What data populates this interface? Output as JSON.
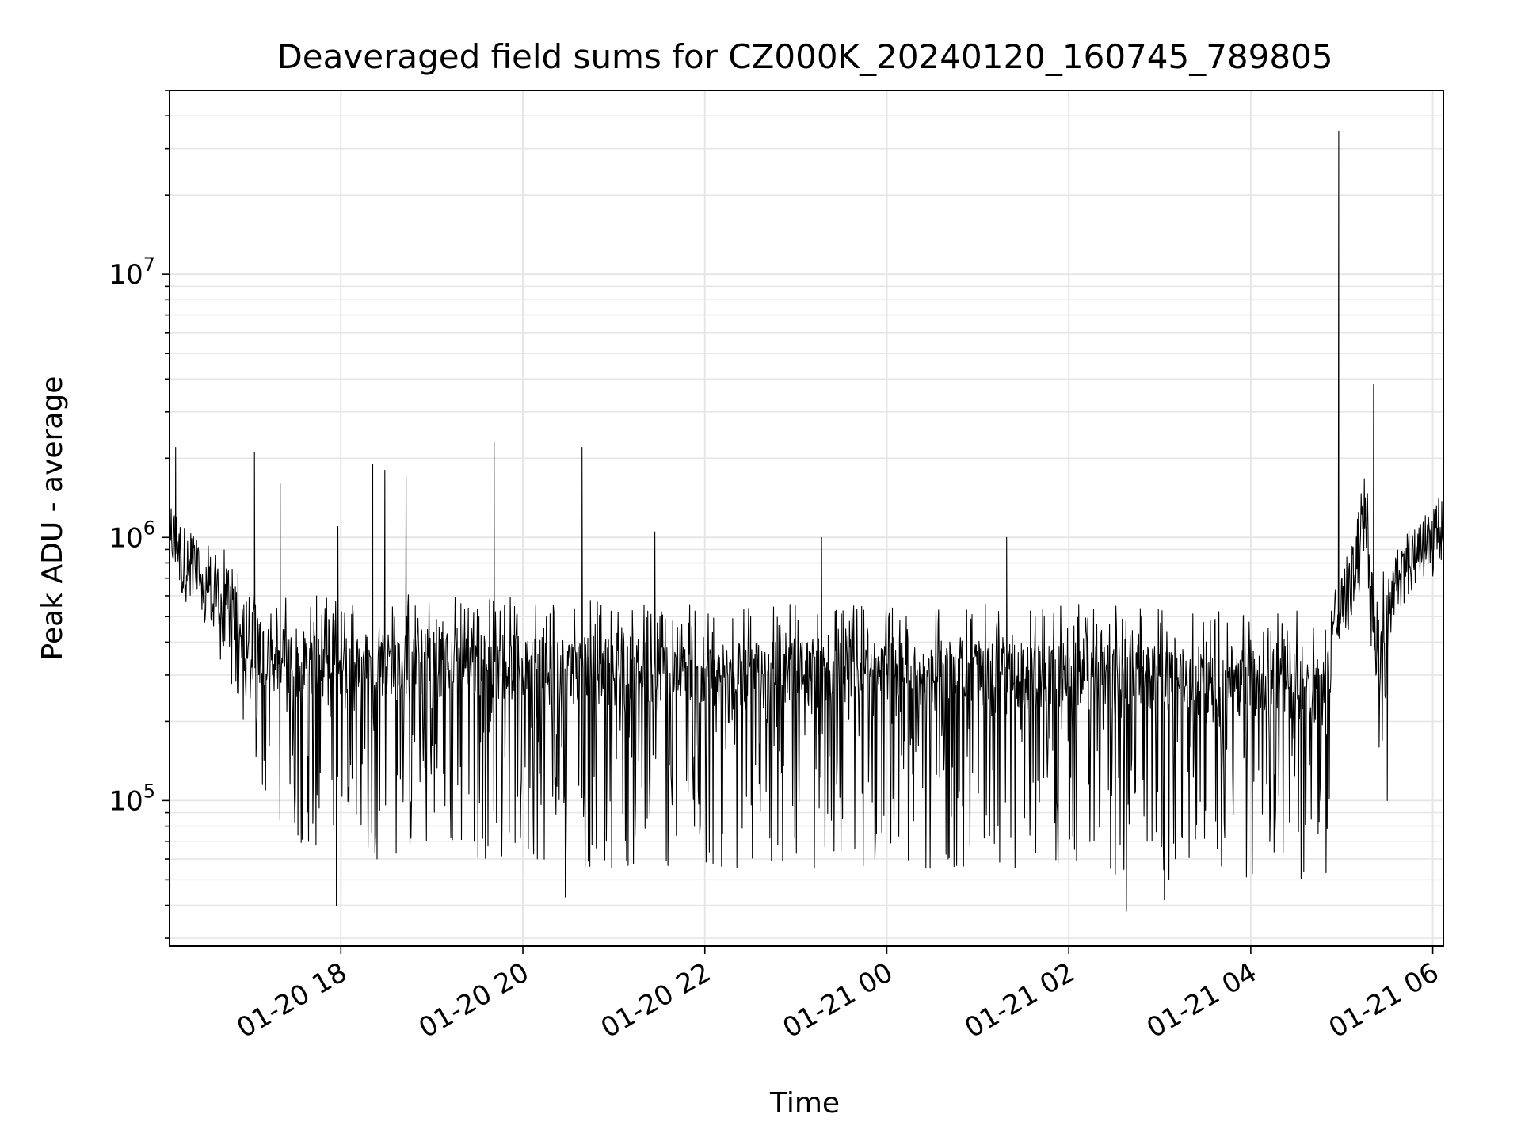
{
  "chart_data": {
    "type": "line",
    "title": "Deaveraged field sums for CZ000K_20240120_160745_789805",
    "xlabel": "Time",
    "ylabel": "Peak ADU - average",
    "yscale": "log",
    "ylim": [
      28000,
      50000000
    ],
    "xlim": [
      "01-20 16:07",
      "01-21 06:07"
    ],
    "grid": true,
    "line_color": "#000000",
    "grid_color": "#e6e6e6",
    "x_ticks": [
      {
        "value": "01-20 18:00",
        "label": "01-20 18"
      },
      {
        "value": "01-20 20:00",
        "label": "01-20 20"
      },
      {
        "value": "01-20 22:00",
        "label": "01-20 22"
      },
      {
        "value": "01-21 00:00",
        "label": "01-21 00"
      },
      {
        "value": "01-21 02:00",
        "label": "01-21 02"
      },
      {
        "value": "01-21 04:00",
        "label": "01-21 04"
      },
      {
        "value": "01-21 06:00",
        "label": "01-21 06"
      }
    ],
    "y_ticks": [
      {
        "value": 100000,
        "base": "10",
        "exp": "5"
      },
      {
        "value": 1000000,
        "base": "10",
        "exp": "6"
      },
      {
        "value": 10000000,
        "base": "10",
        "exp": "7"
      }
    ],
    "series": [
      {
        "x": [
          "01-20 16:07",
          "01-20 16:15",
          "01-20 16:30",
          "01-20 16:45",
          "01-20 17:00",
          "01-20 17:10",
          "01-20 17:20",
          "01-20 17:30",
          "01-20 17:45",
          "01-20 18:00",
          "01-20 18:30",
          "01-20 19:00",
          "01-20 19:30",
          "01-20 20:00",
          "01-20 20:30",
          "01-20 21:00",
          "01-20 21:30",
          "01-20 22:00",
          "01-20 22:30",
          "01-20 23:00",
          "01-20 23:30",
          "01-21 00:00",
          "01-21 00:30",
          "01-21 01:00",
          "01-21 01:30",
          "01-21 02:00",
          "01-21 02:30",
          "01-21 03:00",
          "01-21 03:30",
          "01-21 04:00",
          "01-21 04:30",
          "01-21 04:50",
          "01-21 04:55",
          "01-21 05:05",
          "01-21 05:15",
          "01-21 05:25",
          "01-21 05:35",
          "01-21 05:45",
          "01-21 06:00",
          "01-21 06:07"
        ],
        "mid": [
          1050000,
          850000,
          700000,
          580000,
          400000,
          350000,
          340000,
          330000,
          330000,
          330000,
          335000,
          335000,
          330000,
          320000,
          315000,
          310000,
          305000,
          300000,
          300000,
          300000,
          300000,
          300000,
          300000,
          300000,
          300000,
          300000,
          295000,
          290000,
          285000,
          280000,
          270000,
          260000,
          500000,
          600000,
          1200000,
          300000,
          700000,
          800000,
          950000,
          1150000
        ],
        "low": [
          900000,
          600000,
          450000,
          300000,
          150000,
          100000,
          80000,
          70000,
          65000,
          60000,
          60000,
          65000,
          60000,
          60000,
          55000,
          55000,
          55000,
          55000,
          55000,
          55000,
          55000,
          55000,
          55000,
          55000,
          55000,
          55000,
          50000,
          50000,
          50000,
          50000,
          50000,
          50000,
          350000,
          450000,
          700000,
          120000,
          650000,
          700000,
          800000,
          950000
        ],
        "high": [
          1300000,
          1200000,
          1100000,
          900000,
          700000,
          650000,
          600000,
          600000,
          600000,
          600000,
          620000,
          620000,
          600000,
          600000,
          580000,
          580000,
          570000,
          570000,
          560000,
          560000,
          560000,
          560000,
          560000,
          560000,
          560000,
          560000,
          550000,
          550000,
          540000,
          540000,
          530000,
          520000,
          700000,
          900000,
          2200000,
          700000,
          900000,
          1100000,
          1300000,
          1400000
        ]
      }
    ],
    "spikes": [
      {
        "x": "01-20 16:11",
        "y": 2200000
      },
      {
        "x": "01-20 17:03",
        "y": 2100000
      },
      {
        "x": "01-20 17:20",
        "y": 1600000
      },
      {
        "x": "01-20 17:58",
        "y": 1100000
      },
      {
        "x": "01-20 18:21",
        "y": 1900000
      },
      {
        "x": "01-20 18:29",
        "y": 1800000
      },
      {
        "x": "01-20 18:43",
        "y": 1700000
      },
      {
        "x": "01-20 19:41",
        "y": 2300000
      },
      {
        "x": "01-20 20:39",
        "y": 2200000
      },
      {
        "x": "01-20 21:27",
        "y": 1050000
      },
      {
        "x": "01-20 23:17",
        "y": 1000000
      },
      {
        "x": "01-21 01:19",
        "y": 1000000
      },
      {
        "x": "01-21 04:58",
        "y": 35000000
      },
      {
        "x": "01-21 05:21",
        "y": 3800000
      },
      {
        "x": "01-21 05:30",
        "y": 100000
      },
      {
        "x": "01-20 17:57",
        "y": 40000
      },
      {
        "x": "01-20 20:28",
        "y": 43000
      },
      {
        "x": "01-21 02:38",
        "y": 38000
      },
      {
        "x": "01-21 03:03",
        "y": 42000
      }
    ]
  }
}
